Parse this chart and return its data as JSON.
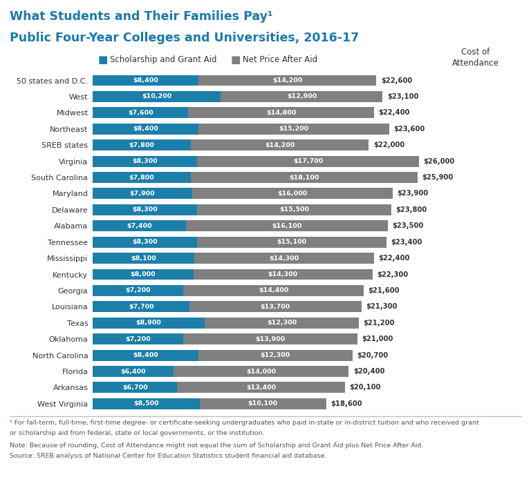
{
  "title_line1": "What Students and Their Families Pay¹",
  "title_line2": "Public Four-Year Colleges and Universities, 2016-17",
  "title_color": "#1a7aaa",
  "background_color": "#ffffff",
  "categories": [
    "50 states and D.C.",
    "West",
    "Midwest",
    "Northeast",
    "SREB states",
    "Virginia",
    "South Carolina",
    "Maryland",
    "Delaware",
    "Alabama",
    "Tennessee",
    "Mississippi",
    "Kentucky",
    "Georgia",
    "Louisiana",
    "Texas",
    "Oklahoma",
    "North Carolina",
    "Florida",
    "Arkansas",
    "West Virginia"
  ],
  "scholarship": [
    8400,
    10200,
    7600,
    8400,
    7800,
    8300,
    7800,
    7900,
    8300,
    7400,
    8300,
    8100,
    8000,
    7200,
    7700,
    8900,
    7200,
    8400,
    6400,
    6700,
    8500
  ],
  "net_price": [
    14200,
    12900,
    14800,
    15200,
    14200,
    17700,
    18100,
    16000,
    15500,
    16100,
    15100,
    14300,
    14300,
    14400,
    13700,
    12300,
    13900,
    12300,
    14000,
    13400,
    10100
  ],
  "cost_of_attendance": [
    22600,
    23100,
    22400,
    23600,
    22000,
    26000,
    25900,
    23900,
    23800,
    23500,
    23400,
    22400,
    22300,
    21600,
    21300,
    21200,
    21000,
    20700,
    20400,
    20100,
    18600
  ],
  "scholarship_color": "#1b7faa",
  "net_price_color": "#808080",
  "bar_height": 0.68,
  "legend_scholarship": "Scholarship and Grant Aid",
  "legend_net_price": "Net Price After Aid",
  "footnote1": "¹ For fall-term, full-time, first-time degree- or certificate-seeking undergraduates who paid in-state or in-district tuition and who received grant",
  "footnote2": "or scholarship aid from federal, state or local governments, or the institution.",
  "note": "Note: Because of rounding, Cost of Attendance might not equal the sum of Scholarship and Grant Aid plus Net Price After Aid.",
  "source": "Source: SREB analysis of National Center for Education Statistics student financial aid database."
}
